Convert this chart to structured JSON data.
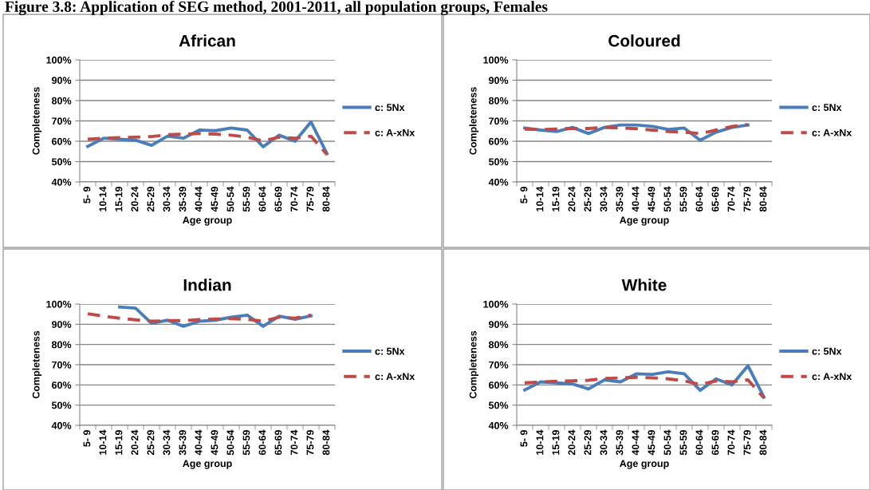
{
  "chart_data": [
    {
      "type": "line",
      "title": "African",
      "xlabel": "Age group",
      "ylabel": "Completeness",
      "annotations": [
        "Figure 3.8: Application of SEG method, 2001-2011, all population groups, Females"
      ],
      "categories": [
        "5- 9",
        "10-14",
        "15-19",
        "20-24",
        "25-29",
        "30-34",
        "35-39",
        "40-44",
        "45-49",
        "50-54",
        "55-59",
        "60-64",
        "65-69",
        "70-74",
        "75-79",
        "80-84"
      ],
      "ylim": [
        40,
        100
      ],
      "yticks": [
        {
          "value": 40,
          "label": "40%"
        },
        {
          "value": 50,
          "label": "50%"
        },
        {
          "value": 60,
          "label": "60%"
        },
        {
          "value": 70,
          "label": "70%"
        },
        {
          "value": 80,
          "label": "80%"
        },
        {
          "value": 90,
          "label": "90%"
        },
        {
          "value": 100,
          "label": "100%"
        }
      ],
      "grid": "y",
      "legend": "right",
      "series": [
        {
          "name": "c: 5Nx",
          "color": "#4a7ebb",
          "line_style": "solid",
          "values": [
            57.5,
            61.5,
            61,
            60.5,
            58,
            62.5,
            61.5,
            65.5,
            65.2,
            66.5,
            65.5,
            57.3,
            63,
            60,
            69.5,
            54
          ]
        },
        {
          "name": "c: A-xNx",
          "color": "#be4b48",
          "line_style": "dashed",
          "values": [
            61,
            61.5,
            61.8,
            62,
            62.3,
            63.2,
            63.5,
            63.8,
            63.5,
            63,
            62,
            60.2,
            62,
            61.5,
            62.5,
            53.5
          ]
        }
      ]
    },
    {
      "type": "line",
      "title": "Coloured",
      "xlabel": "Age group",
      "ylabel": "Completeness",
      "categories": [
        "5- 9",
        "10-14",
        "15-19",
        "20-24",
        "25-29",
        "30-34",
        "35-39",
        "40-44",
        "45-49",
        "50-54",
        "55-59",
        "60-64",
        "65-69",
        "70-74",
        "75-79",
        "80-84"
      ],
      "ylim": [
        40,
        100
      ],
      "yticks": [
        {
          "value": 40,
          "label": "40%"
        },
        {
          "value": 50,
          "label": "50%"
        },
        {
          "value": 60,
          "label": "60%"
        },
        {
          "value": 70,
          "label": "70%"
        },
        {
          "value": 80,
          "label": "80%"
        },
        {
          "value": 90,
          "label": "90%"
        },
        {
          "value": 100,
          "label": "100%"
        }
      ],
      "grid": "y",
      "legend": "right",
      "series": [
        {
          "name": "c: 5Nx",
          "color": "#4a7ebb",
          "line_style": "solid",
          "values": [
            66.5,
            65.5,
            64.8,
            66.8,
            63.8,
            66.8,
            68,
            68,
            67.3,
            65.8,
            66.5,
            60.5,
            64.5,
            66.8,
            68,
            null
          ]
        },
        {
          "name": "c: A-xNx",
          "color": "#be4b48",
          "line_style": "dashed",
          "values": [
            66,
            65.8,
            66,
            66.3,
            66.3,
            66.8,
            66.5,
            66.2,
            65.5,
            64.8,
            64.5,
            63.8,
            65.5,
            67.3,
            68.2,
            null
          ]
        }
      ]
    },
    {
      "type": "line",
      "title": "Indian",
      "xlabel": "Age group",
      "ylabel": "Completeness",
      "categories": [
        "5- 9",
        "10-14",
        "15-19",
        "20-24",
        "25-29",
        "30-34",
        "35-39",
        "40-44",
        "45-49",
        "50-54",
        "55-59",
        "60-64",
        "65-69",
        "70-74",
        "75-79",
        "80-84"
      ],
      "ylim": [
        40,
        100
      ],
      "yticks": [
        {
          "value": 40,
          "label": "40%"
        },
        {
          "value": 50,
          "label": "50%"
        },
        {
          "value": 60,
          "label": "60%"
        },
        {
          "value": 70,
          "label": "70%"
        },
        {
          "value": 80,
          "label": "80%"
        },
        {
          "value": 90,
          "label": "90%"
        },
        {
          "value": 100,
          "label": "100%"
        }
      ],
      "grid": "y",
      "legend": "right",
      "series": [
        {
          "name": "c: 5Nx",
          "color": "#4a7ebb",
          "line_style": "solid",
          "values": [
            null,
            null,
            98.5,
            98,
            90.5,
            92,
            89,
            91.5,
            92,
            93.5,
            94.5,
            89,
            94,
            92.5,
            94.2,
            null
          ]
        },
        {
          "name": "c: A-xNx",
          "color": "#be4b48",
          "line_style": "dashed",
          "values": [
            95.2,
            94,
            93,
            92.2,
            91.5,
            91.8,
            91.8,
            92.3,
            92.6,
            92.8,
            92.5,
            91.5,
            93.5,
            93,
            94.5,
            null
          ]
        }
      ]
    },
    {
      "type": "line",
      "title": "White",
      "xlabel": "Age group",
      "ylabel": "Completeness",
      "categories": [
        "5- 9",
        "10-14",
        "15-19",
        "20-24",
        "25-29",
        "30-34",
        "35-39",
        "40-44",
        "45-49",
        "50-54",
        "55-59",
        "60-64",
        "65-69",
        "70-74",
        "75-79",
        "80-84"
      ],
      "ylim": [
        40,
        100
      ],
      "yticks": [
        {
          "value": 40,
          "label": "40%"
        },
        {
          "value": 50,
          "label": "50%"
        },
        {
          "value": 60,
          "label": "60%"
        },
        {
          "value": 70,
          "label": "70%"
        },
        {
          "value": 80,
          "label": "80%"
        },
        {
          "value": 90,
          "label": "90%"
        },
        {
          "value": 100,
          "label": "100%"
        }
      ],
      "grid": "y",
      "legend": "right",
      "series": [
        {
          "name": "c: 5Nx",
          "color": "#4a7ebb",
          "line_style": "solid",
          "values": [
            57.5,
            61.5,
            61,
            60.5,
            58,
            62.5,
            61.5,
            65.5,
            65.2,
            66.5,
            65.5,
            57.3,
            63,
            60,
            69.5,
            54
          ]
        },
        {
          "name": "c: A-xNx",
          "color": "#be4b48",
          "line_style": "dashed",
          "values": [
            61,
            61.5,
            61.8,
            62,
            62.3,
            63.2,
            63.5,
            63.8,
            63.5,
            63,
            62,
            60.2,
            62,
            61.5,
            62.5,
            53.5
          ]
        }
      ]
    }
  ]
}
